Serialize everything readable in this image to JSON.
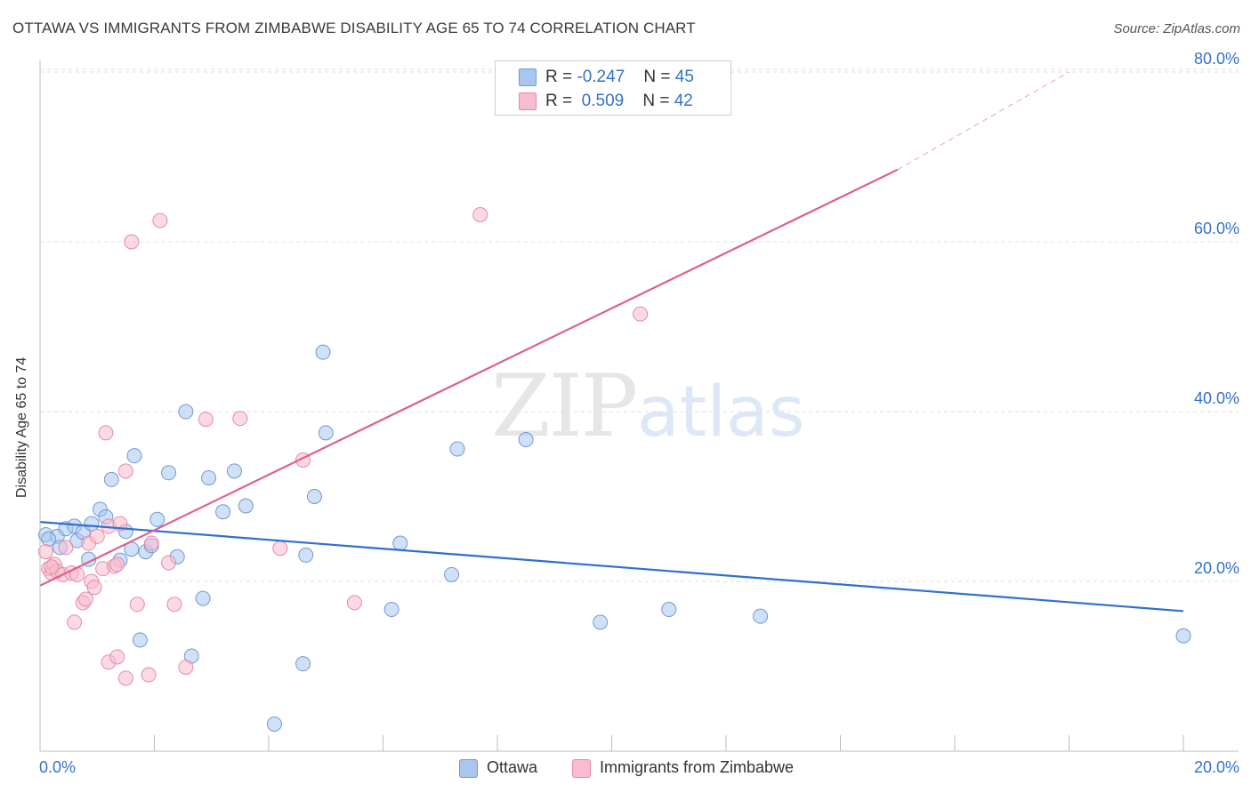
{
  "title": "OTTAWA VS IMMIGRANTS FROM ZIMBABWE DISABILITY AGE 65 TO 74 CORRELATION CHART",
  "source": "Source: ZipAtlas.com",
  "watermark": {
    "zip": "ZIP",
    "atlas": "atlas"
  },
  "legend": {
    "rows": [
      {
        "r_label": "R = ",
        "r_value": "-0.247",
        "n_label": "N = ",
        "n_value": "45"
      },
      {
        "r_label": "R = ",
        "r_value": " 0.509",
        "n_label": "N = ",
        "n_value": "42"
      }
    ]
  },
  "bottom_legend": [
    "Ottawa",
    "Immigrants from Zimbabwe"
  ],
  "colors": {
    "blue_fill": "#aac6ee",
    "blue_stroke": "#6f9ad6",
    "blue_line": "#2f6fcd",
    "pink_fill": "#f7bccd",
    "pink_stroke": "#e78aa6",
    "pink_line": "#e0608c",
    "grid": "#dcdcdc",
    "axis_text": "#3571c8"
  },
  "chart_data": {
    "type": "scatter",
    "title": "OTTAWA VS IMMIGRANTS FROM ZIMBABWE DISABILITY AGE 65 TO 74 CORRELATION CHART",
    "xlabel": "",
    "ylabel": "Disability Age 65 to 74",
    "xlim": [
      0,
      20
    ],
    "ylim": [
      0,
      82
    ],
    "x_tick_labels": [
      "0.0%",
      "20.0%"
    ],
    "y_ticks": [
      20,
      40,
      60,
      80
    ],
    "y_tick_labels": [
      "20.0%",
      "40.0%",
      "60.0%",
      "80.0%"
    ],
    "grid": true,
    "series": [
      {
        "name": "Ottawa",
        "r": -0.247,
        "n": 45,
        "points": [
          [
            0.1,
            25.5
          ],
          [
            0.3,
            25.3
          ],
          [
            0.35,
            24.0
          ],
          [
            0.45,
            26.2
          ],
          [
            0.6,
            26.5
          ],
          [
            0.65,
            24.8
          ],
          [
            0.75,
            25.8
          ],
          [
            0.85,
            22.6
          ],
          [
            0.9,
            26.8
          ],
          [
            1.05,
            28.5
          ],
          [
            1.15,
            27.6
          ],
          [
            1.25,
            32.0
          ],
          [
            1.4,
            22.5
          ],
          [
            1.5,
            25.9
          ],
          [
            1.6,
            23.8
          ],
          [
            1.65,
            34.8
          ],
          [
            1.75,
            13.1
          ],
          [
            1.85,
            23.5
          ],
          [
            1.95,
            24.2
          ],
          [
            2.05,
            27.3
          ],
          [
            2.25,
            32.8
          ],
          [
            2.4,
            22.9
          ],
          [
            2.55,
            40.0
          ],
          [
            2.65,
            11.2
          ],
          [
            2.85,
            18.0
          ],
          [
            2.95,
            32.2
          ],
          [
            3.2,
            28.2
          ],
          [
            3.4,
            33.0
          ],
          [
            3.6,
            28.9
          ],
          [
            4.1,
            3.2
          ],
          [
            4.6,
            10.3
          ],
          [
            4.65,
            23.1
          ],
          [
            4.8,
            30.0
          ],
          [
            4.95,
            47.0
          ],
          [
            5.0,
            37.5
          ],
          [
            6.15,
            16.7
          ],
          [
            6.3,
            24.5
          ],
          [
            7.2,
            20.8
          ],
          [
            7.3,
            35.6
          ],
          [
            8.5,
            36.7
          ],
          [
            9.8,
            15.2
          ],
          [
            11.0,
            16.7
          ],
          [
            12.6,
            15.9
          ],
          [
            20.0,
            13.6
          ],
          [
            0.15,
            25.0
          ]
        ],
        "trend": {
          "x": [
            0.0,
            20.0
          ],
          "y": [
            27.0,
            16.5
          ]
        }
      },
      {
        "name": "Immigrants from Zimbabwe",
        "r": 0.509,
        "n": 42,
        "points": [
          [
            0.1,
            23.5
          ],
          [
            0.15,
            21.5
          ],
          [
            0.2,
            21.0
          ],
          [
            0.25,
            22.0
          ],
          [
            0.3,
            21.2
          ],
          [
            0.4,
            20.8
          ],
          [
            0.45,
            24.0
          ],
          [
            0.55,
            21.0
          ],
          [
            0.6,
            15.2
          ],
          [
            0.65,
            20.8
          ],
          [
            0.75,
            17.5
          ],
          [
            0.8,
            17.9
          ],
          [
            0.85,
            24.5
          ],
          [
            0.9,
            20.0
          ],
          [
            0.95,
            19.3
          ],
          [
            1.0,
            25.3
          ],
          [
            1.1,
            21.5
          ],
          [
            1.15,
            37.5
          ],
          [
            1.2,
            26.5
          ],
          [
            1.3,
            21.8
          ],
          [
            1.35,
            22.0
          ],
          [
            1.4,
            26.8
          ],
          [
            1.2,
            10.5
          ],
          [
            1.35,
            11.1
          ],
          [
            1.5,
            8.6
          ],
          [
            1.5,
            33.0
          ],
          [
            1.6,
            60.0
          ],
          [
            1.7,
            17.3
          ],
          [
            1.9,
            9.0
          ],
          [
            1.95,
            24.5
          ],
          [
            2.1,
            62.5
          ],
          [
            2.25,
            22.2
          ],
          [
            2.35,
            17.3
          ],
          [
            2.55,
            9.9
          ],
          [
            2.9,
            39.1
          ],
          [
            3.5,
            39.2
          ],
          [
            4.2,
            23.9
          ],
          [
            4.6,
            34.3
          ],
          [
            5.5,
            17.5
          ],
          [
            7.7,
            63.2
          ],
          [
            10.5,
            51.5
          ],
          [
            0.2,
            21.7
          ]
        ],
        "trend": {
          "x": [
            0.0,
            15.0
          ],
          "y": [
            19.5,
            68.5
          ]
        },
        "trend_dashed": {
          "x": [
            15.0,
            18.0
          ],
          "y": [
            68.5,
            80.0
          ]
        }
      }
    ]
  }
}
